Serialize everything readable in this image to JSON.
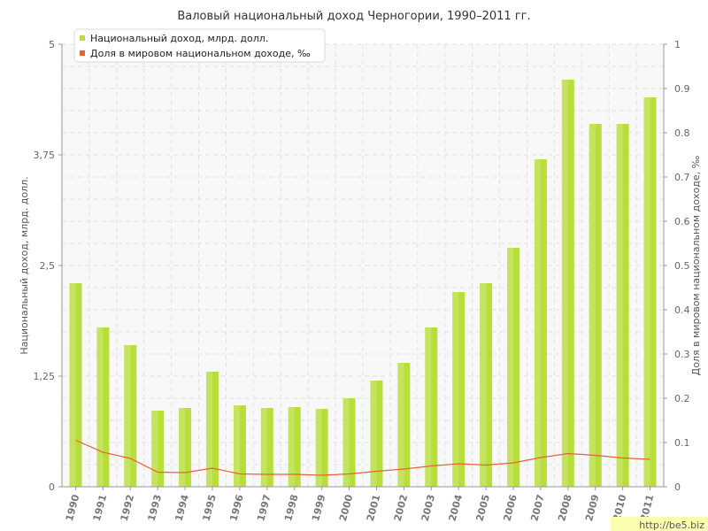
{
  "chart_data": {
    "type": "bar",
    "title": "Валовый национальный доход Черногории, 1990–2011 гг.",
    "categories": [
      "1990",
      "1991",
      "1992",
      "1993",
      "1994",
      "1995",
      "1996",
      "1997",
      "1998",
      "1999",
      "2000",
      "2001",
      "2002",
      "2003",
      "2004",
      "2005",
      "2006",
      "2007",
      "2008",
      "2009",
      "2010",
      "2011"
    ],
    "series": [
      {
        "name": "Национальный доход, млрд. долл.",
        "type": "bar",
        "axis": "left",
        "color": "#b8de3c",
        "values": [
          2.3,
          1.8,
          1.6,
          0.86,
          0.89,
          1.3,
          0.92,
          0.89,
          0.9,
          0.88,
          1.0,
          1.2,
          1.4,
          1.8,
          2.2,
          2.3,
          2.7,
          3.7,
          4.6,
          4.1,
          4.1,
          4.4
        ]
      },
      {
        "name": "Доля в мировом национальном доходе, ‰",
        "type": "line",
        "axis": "right",
        "color": "#e8613a",
        "values": [
          0.105,
          0.078,
          0.064,
          0.033,
          0.032,
          0.042,
          0.029,
          0.028,
          0.028,
          0.026,
          0.029,
          0.035,
          0.04,
          0.047,
          0.052,
          0.049,
          0.054,
          0.066,
          0.075,
          0.071,
          0.065,
          0.062
        ]
      }
    ],
    "y_left": {
      "label": "Национальный доход, млрд. долл.",
      "ylim": [
        0,
        5
      ],
      "ticks": [
        "0",
        "1,25",
        "2,5",
        "3,75",
        "5"
      ]
    },
    "y_right": {
      "label": "Доля в мировом национальном доходе, ‰",
      "ylim": [
        0,
        1
      ],
      "ticks": [
        "0",
        "0.1",
        "0.2",
        "0.3",
        "0.4",
        "0.5",
        "0.6",
        "0.7",
        "0.8",
        "0.9",
        "1"
      ]
    },
    "xlabel": "",
    "grid": true,
    "legend_position": "top-left"
  },
  "watermark": "http://be5.biz",
  "colors": {
    "bar_fill": "#b8de3c",
    "line": "#e8613a",
    "plot_background": "#f8f8f8",
    "grid": "#e2e2e2"
  }
}
